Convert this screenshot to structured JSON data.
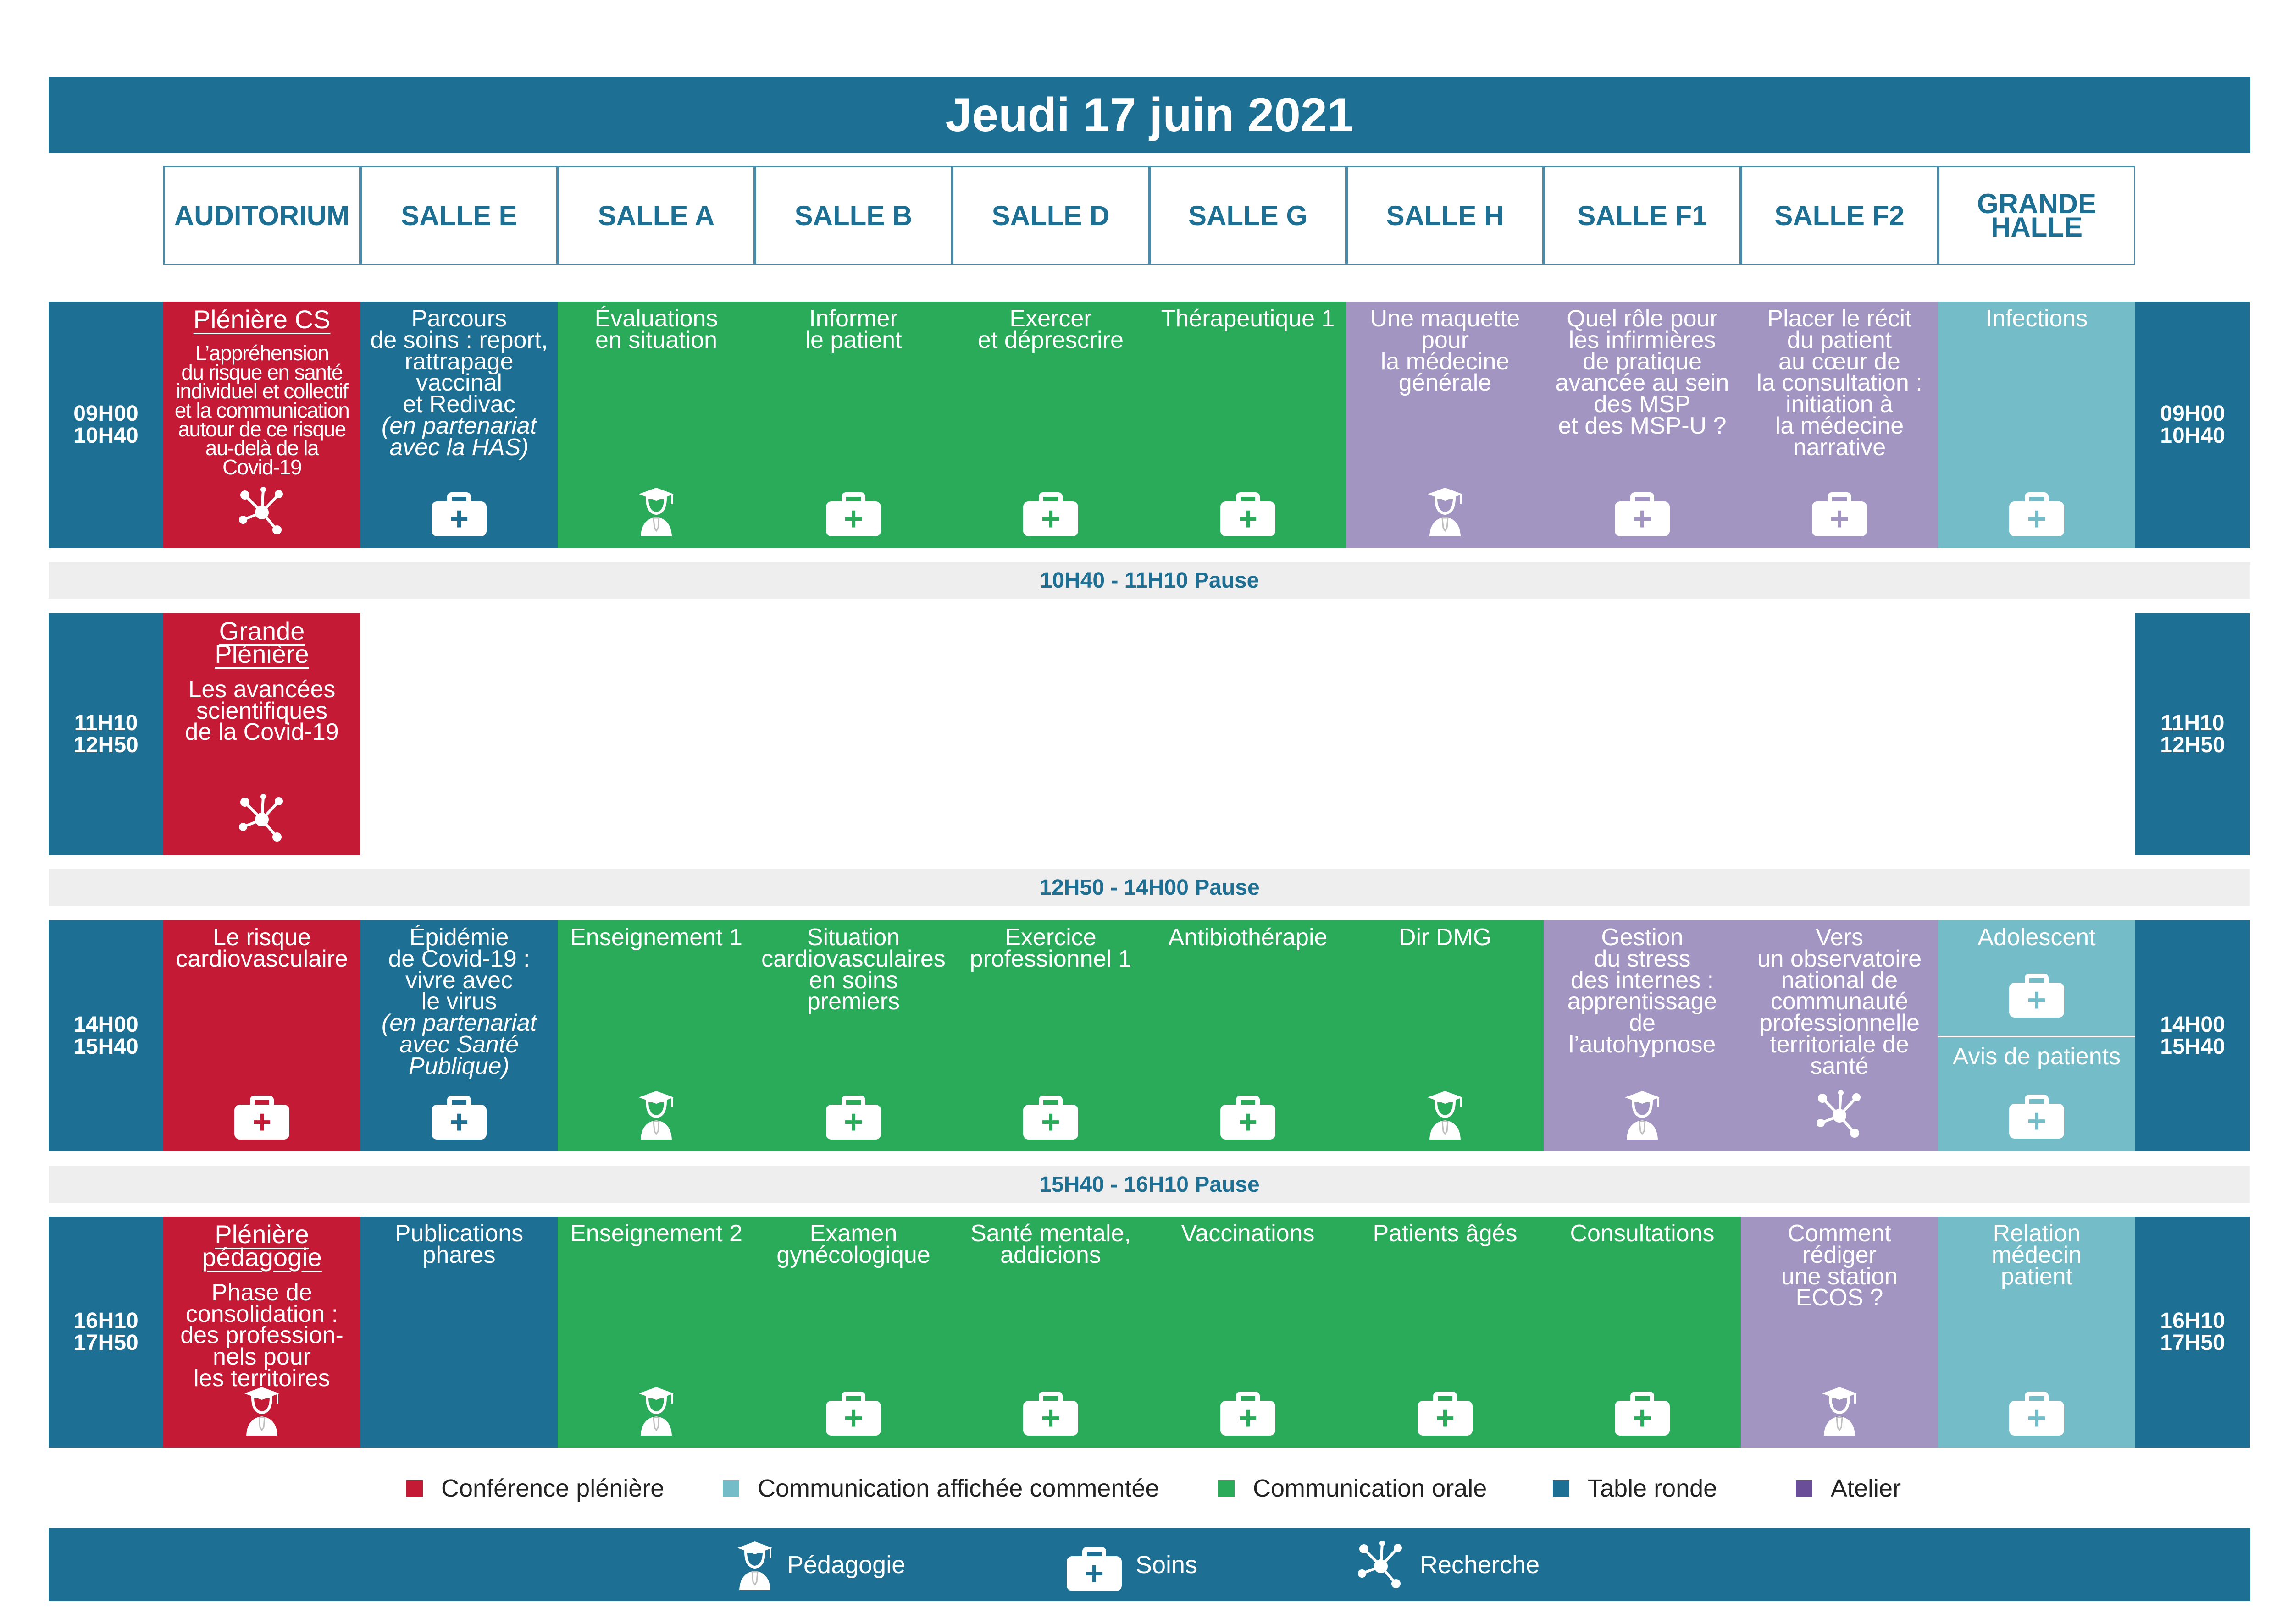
{
  "title": "Jeudi 17 juin 2021",
  "colors": {
    "pleniere": "#c51a35",
    "table_ronde": "#1d7093",
    "communication_orale": "#2aab5a",
    "atelier": "#a295c2",
    "affichee": "#74bcc7",
    "pause_bg": "#eeeeee",
    "atelier_swatch": "#6a4f98"
  },
  "rooms": [
    "AUDITORIUM",
    "SALLE E",
    "SALLE A",
    "SALLE B",
    "SALLE D",
    "SALLE G",
    "SALLE H",
    "SALLE F1",
    "SALLE F2",
    "GRANDE\nHALLE"
  ],
  "slots": [
    {
      "time": "09H00\n10H40",
      "cells": [
        {
          "type": "pleniere",
          "head": "Plénière CS",
          "text": "L’appréhension\ndu risque en santé\nindividuel et collectif\net la communication\nautour de ce risque\nau-delà de la\nCovid-19",
          "icon": "network-icon"
        },
        {
          "type": "table_ronde",
          "text": "Parcours\nde soins : report,\nrattrapage\nvaccinal\net Redivac",
          "italic": "(en partenariat\navec la HAS)",
          "icon": "medical-kit-icon"
        },
        {
          "type": "communication_orale",
          "text": "Évaluations\nen situation",
          "icon": "graduate-icon"
        },
        {
          "type": "communication_orale",
          "text": "Informer\nle patient",
          "icon": "medical-kit-icon"
        },
        {
          "type": "communication_orale",
          "text": "Exercer\net déprescrire",
          "icon": "medical-kit-icon"
        },
        {
          "type": "communication_orale",
          "text": "Thérapeutique 1",
          "icon": "medical-kit-icon"
        },
        {
          "type": "atelier",
          "text": "Une maquette\npour\nla médecine\ngénérale",
          "icon": "graduate-icon"
        },
        {
          "type": "atelier",
          "text": "Quel rôle pour\nles infirmières\nde pratique\navancée au sein\ndes MSP\net des MSP-U ?",
          "icon": "medical-kit-icon"
        },
        {
          "type": "atelier",
          "text": "Placer le récit\ndu patient\nau cœur de\nla consultation :\ninitiation à\nla médecine\nnarrative",
          "icon": "medical-kit-icon"
        },
        {
          "type": "affichee",
          "text": "Infections",
          "icon": "medical-kit-icon"
        }
      ]
    },
    {
      "time": "11H10\n12H50",
      "cells": [
        {
          "type": "pleniere",
          "head": "Grande\nPlénière",
          "text": "Les avancées\nscientifiques\nde la Covid-19",
          "icon": "network-icon"
        }
      ]
    },
    {
      "time": "14H00\n15H40",
      "cells": [
        {
          "type": "pleniere",
          "text": "Le risque\ncardiovasculaire",
          "icon": "medical-kit-icon"
        },
        {
          "type": "table_ronde",
          "text": "Épidémie\nde Covid-19 :\nvivre avec\nle virus",
          "italic": "(en partenariat\navec Santé\nPublique)",
          "icon": "medical-kit-icon"
        },
        {
          "type": "communication_orale",
          "text": "Enseignement 1",
          "icon": "graduate-icon"
        },
        {
          "type": "communication_orale",
          "text": "Situation\ncardiovasculaires\nen soins\npremiers",
          "icon": "medical-kit-icon"
        },
        {
          "type": "communication_orale",
          "text": "Exercice\nprofessionnel 1",
          "icon": "medical-kit-icon"
        },
        {
          "type": "communication_orale",
          "text": "Antibiothérapie",
          "icon": "medical-kit-icon"
        },
        {
          "type": "communication_orale",
          "text": "Dir DMG",
          "icon": "graduate-icon"
        },
        {
          "type": "atelier",
          "text": "Gestion\ndu stress\ndes internes :\napprentissage\nde\nl’autohypnose",
          "icon": "graduate-icon"
        },
        {
          "type": "atelier",
          "text": "Vers\nun observatoire\nnational de\ncommunauté\nprofessionnelle\nterritoriale de\nsanté",
          "icon": "network-icon"
        },
        {
          "type": "affichee",
          "text": "Adolescent",
          "text2": "Avis de patients",
          "icon": "medical-kit-icon"
        }
      ]
    },
    {
      "time": "16H10\n17H50",
      "cells": [
        {
          "type": "pleniere",
          "head": "Plénière\npédagogie",
          "text": "Phase de\nconsolidation :\ndes profession-\nnels pour\nles territoires",
          "icon": "graduate-icon"
        },
        {
          "type": "table_ronde",
          "text": "Publications\nphares"
        },
        {
          "type": "communication_orale",
          "text": "Enseignement 2",
          "icon": "graduate-icon"
        },
        {
          "type": "communication_orale",
          "text": "Examen\ngynécologique",
          "icon": "medical-kit-icon"
        },
        {
          "type": "communication_orale",
          "text": "Santé mentale,\naddicions",
          "icon": "medical-kit-icon"
        },
        {
          "type": "communication_orale",
          "text": "Vaccinations",
          "icon": "medical-kit-icon"
        },
        {
          "type": "communication_orale",
          "text": "Patients âgés",
          "icon": "medical-kit-icon"
        },
        {
          "type": "communication_orale",
          "text": "Consultations",
          "icon": "medical-kit-icon"
        },
        {
          "type": "atelier",
          "text": "Comment\nrédiger\nune station\nECOS ?",
          "icon": "graduate-icon"
        },
        {
          "type": "affichee",
          "text": "Relation\nmédecin\npatient",
          "icon": "medical-kit-icon"
        }
      ]
    }
  ],
  "pauses": [
    "10H40 - 11H10 Pause",
    "12H50 - 14H00 Pause",
    "15H40 - 16H10 Pause"
  ],
  "legend": [
    {
      "label": "Conférence plénière",
      "color": "#c51a35"
    },
    {
      "label": "Communication affichée commentée",
      "color": "#74bcc7"
    },
    {
      "label": "Communication orale",
      "color": "#2aab5a"
    },
    {
      "label": "Table ronde",
      "color": "#1d7093"
    },
    {
      "label": "Atelier",
      "color": "#6a4f98"
    }
  ],
  "footer": [
    {
      "icon": "graduate-icon",
      "label": "Pédagogie"
    },
    {
      "icon": "medical-kit-icon",
      "label": "Soins"
    },
    {
      "icon": "network-icon",
      "label": "Recherche"
    }
  ]
}
